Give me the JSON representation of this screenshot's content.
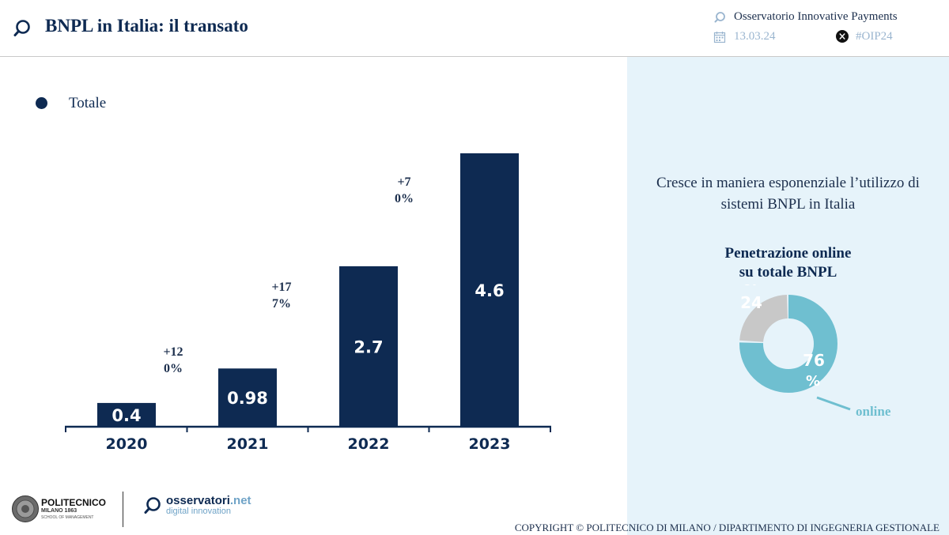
{
  "header": {
    "title": "BNPL in Italia: il transato",
    "observatory": "Osservatorio Innovative Payments",
    "date": "13.03.24",
    "hashtag": "#OIP24"
  },
  "chart_data": [
    {
      "type": "bar",
      "legend": [
        "Totale"
      ],
      "legend_position": "top-left",
      "categories": [
        "2020",
        "2021",
        "2022",
        "2023"
      ],
      "series": [
        {
          "name": "Totale",
          "values": [
            0.4,
            0.98,
            2.7,
            4.6
          ]
        }
      ],
      "value_labels": [
        "0.4",
        "0.98",
        "2.7",
        "4.6"
      ],
      "growth_labels": [
        "+120%",
        "+177%",
        "+70%"
      ],
      "ylim": [
        0,
        4.6
      ],
      "grid": false,
      "colors": {
        "bar": "#0e2a52",
        "axis": "#0e2a52"
      }
    },
    {
      "type": "pie",
      "title_lines": [
        "Penetrazione online",
        "su totale BNPL"
      ],
      "slices": [
        {
          "value": 76,
          "label": "76%",
          "name": "online",
          "color": "#6fbfd0"
        },
        {
          "value": 24,
          "label": "24%",
          "color": "#c8c8c8"
        }
      ]
    }
  ],
  "insight": {
    "line1": "Cresce in maniera esponenziale l’utilizzo di",
    "line2": "sistemi BNPL in Italia"
  },
  "donut": {
    "online_label": "online",
    "online_pct": "76%",
    "other_pct": "0.24"
  },
  "footer": {
    "polimi_name": "POLITECNICO",
    "polimi_sub": "MILANO 1863",
    "polimi_school": "SCHOOL OF MANAGEMENT",
    "oss_name": "osservatori",
    "oss_net": ".net",
    "oss_sub": "digital innovation",
    "copyright": "COPYRIGHT © POLITECNICO DI MILANO / DIPARTIMENTO DI INGEGNERIA GESTIONALE"
  },
  "icons": {
    "logo": "magnifier-logo-icon",
    "observatory": "magnifier-icon",
    "calendar": "calendar-icon",
    "x": "x-social-icon"
  }
}
